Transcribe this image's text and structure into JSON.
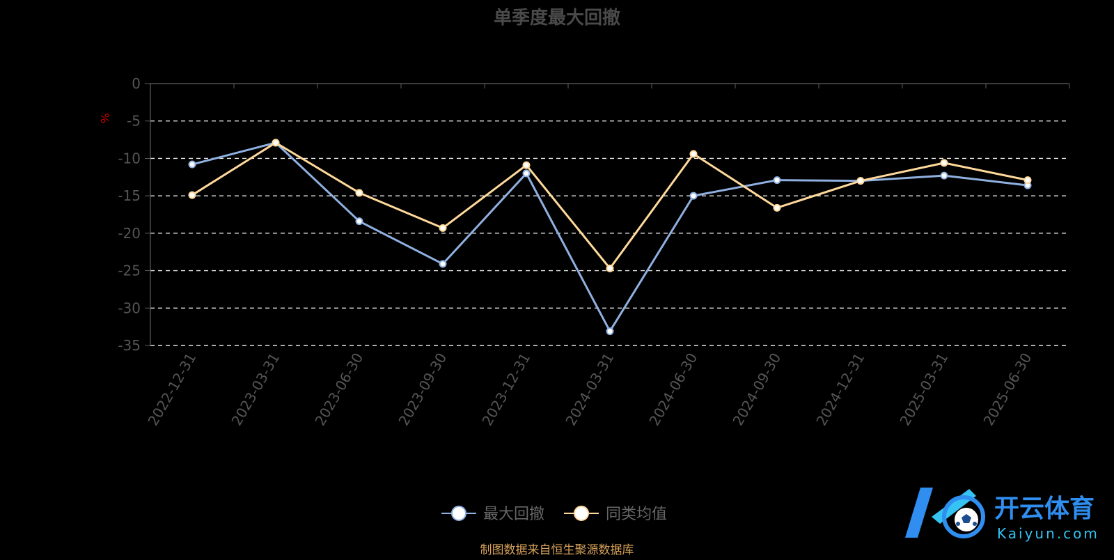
{
  "colors": {
    "background": "#000000",
    "axis": "#5f5f5f",
    "tick_label": "#555555",
    "grid": "#e6e6e6",
    "title": "#4a4a4a",
    "ylabel": "#cc0000",
    "legend_text": "#666666",
    "footer": "#d6a15a",
    "logo_blue": "#2f8ef0",
    "logo_cyan": "#34c3f2"
  },
  "chart_data": {
    "type": "line",
    "title": "单季度最大回撤",
    "ylabel": "%",
    "xlabel": "",
    "ylim": [
      -35,
      0
    ],
    "yticks": [
      0,
      -5,
      -10,
      -15,
      -20,
      -25,
      -30,
      -35
    ],
    "grid": true,
    "legend_position": "bottom-center",
    "categories": [
      "2022-12-31",
      "2023-03-31",
      "2023-06-30",
      "2023-09-30",
      "2023-12-31",
      "2024-03-31",
      "2024-06-30",
      "2024-09-30",
      "2024-12-31",
      "2025-03-31",
      "2025-06-30"
    ],
    "series": [
      {
        "name": "最大回撤",
        "color": "#8fb0e0",
        "values": [
          -10.8,
          -7.9,
          -18.4,
          -24.1,
          -12.0,
          -33.1,
          -15.0,
          -12.9,
          -13.0,
          -12.3,
          -13.6
        ]
      },
      {
        "name": "同类均值",
        "color": "#ffd99b",
        "values": [
          -14.9,
          -7.9,
          -14.6,
          -19.3,
          -10.9,
          -24.7,
          -9.4,
          -16.6,
          -13.0,
          -10.6,
          -12.9
        ]
      }
    ]
  },
  "footer": {
    "source": "制图数据来自恒生聚源数据库"
  },
  "logo": {
    "brand_cn": "开云体育",
    "brand_en": "Kaiyun.com"
  }
}
